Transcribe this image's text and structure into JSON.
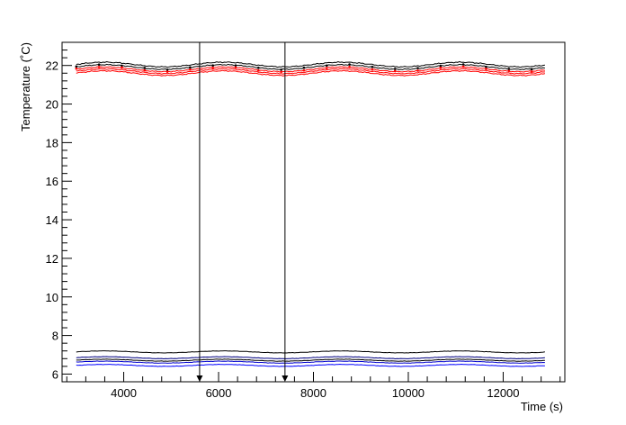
{
  "chart_data": {
    "type": "line",
    "title": "",
    "xlabel": "Time (s)",
    "ylabel": "Temperature (˚C)",
    "xlim": [
      2700,
      13300
    ],
    "ylim": [
      5.6,
      23.2
    ],
    "x_ticks": [
      4000,
      6000,
      8000,
      10000,
      12000
    ],
    "x_tick_labels": [
      "4000",
      "6000",
      "8000",
      "10000",
      "12000"
    ],
    "y_ticks": [
      6,
      8,
      10,
      12,
      14,
      16,
      18,
      20,
      22
    ],
    "y_tick_labels": [
      "6",
      "8",
      "10",
      "12",
      "14",
      "16",
      "18",
      "20",
      "22"
    ],
    "grid": false,
    "x_range": [
      3000,
      12900
    ],
    "wave": {
      "period": 2500,
      "phase_x": 3600
    },
    "series": [
      {
        "color": "#000000",
        "base": 22.05,
        "amp": 0.12,
        "markers": false
      },
      {
        "color": "#000000",
        "base": 21.92,
        "amp": 0.12,
        "markers": true
      },
      {
        "color": "#ff0000",
        "base": 21.8,
        "amp": 0.12,
        "markers": true
      },
      {
        "color": "#ff0000",
        "base": 21.7,
        "amp": 0.12,
        "markers": false
      },
      {
        "color": "#ff0000",
        "base": 21.6,
        "amp": 0.12,
        "markers": false
      },
      {
        "color": "#000000",
        "base": 7.15,
        "amp": 0.05,
        "markers": false
      },
      {
        "color": "#000080",
        "base": 6.85,
        "amp": 0.05,
        "markers": false
      },
      {
        "color": "#000000",
        "base": 6.72,
        "amp": 0.05,
        "markers": false
      },
      {
        "color": "#0000cc",
        "base": 6.62,
        "amp": 0.05,
        "markers": false
      },
      {
        "color": "#0000ff",
        "base": 6.45,
        "amp": 0.05,
        "markers": false
      }
    ],
    "annotations": [
      {
        "type": "arrow",
        "x": 5600,
        "y_from": 23.2,
        "y_to": 5.6
      },
      {
        "type": "arrow",
        "x": 7400,
        "y_from": 23.2,
        "y_to": 5.6
      }
    ]
  }
}
